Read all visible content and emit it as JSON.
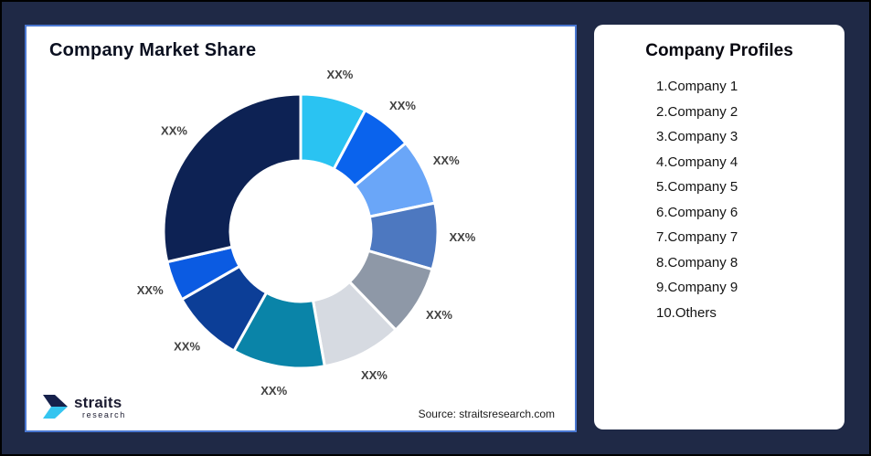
{
  "frame": {
    "background": "#1F2946",
    "border_color": "#000000"
  },
  "left_panel": {
    "title": "Company Market Share",
    "source": "Source: straitsresearch.com",
    "card_background": "#FFFFFF",
    "border_color": "#4A77D1"
  },
  "logo": {
    "brand": "straits",
    "brand_sub": "research",
    "icon_top_color": "#16214B",
    "icon_bottom_color": "#35C5F0"
  },
  "right_panel": {
    "title": "Company Profiles",
    "items": [
      "1.Company 1",
      "2.Company 2",
      "3.Company 3",
      "4.Company 4",
      "5.Company 5",
      "6.Company 6",
      "7.Company 7",
      "8.Company 8",
      "9.Company 9",
      "10.Others"
    ]
  },
  "chart_data": {
    "type": "pie",
    "subtype": "donut",
    "title": "Company Market Share",
    "start_angle_deg": 0,
    "clockwise": true,
    "inner_radius_ratio": 0.51,
    "legend_position": "none",
    "label_color": "#414141",
    "separator_color": "#FFFFFF",
    "segments": [
      {
        "label": "XX%",
        "value_pct": 7.8,
        "color": "#2AC3F2"
      },
      {
        "label": "XX%",
        "value_pct": 6.1,
        "color": "#0A63ED"
      },
      {
        "label": "XX%",
        "value_pct": 7.8,
        "color": "#6AA6F8"
      },
      {
        "label": "XX%",
        "value_pct": 7.8,
        "color": "#4D78C0"
      },
      {
        "label": "XX%",
        "value_pct": 8.3,
        "color": "#8E98A7"
      },
      {
        "label": "XX%",
        "value_pct": 9.4,
        "color": "#D6DAE1"
      },
      {
        "label": "XX%",
        "value_pct": 10.9,
        "color": "#0A84A8"
      },
      {
        "label": "XX%",
        "value_pct": 8.6,
        "color": "#0C3E97"
      },
      {
        "label": "XX%",
        "value_pct": 4.7,
        "color": "#0B5BE2"
      },
      {
        "label": "XX%",
        "value_pct": 28.6,
        "color": "#0D2254"
      }
    ]
  }
}
